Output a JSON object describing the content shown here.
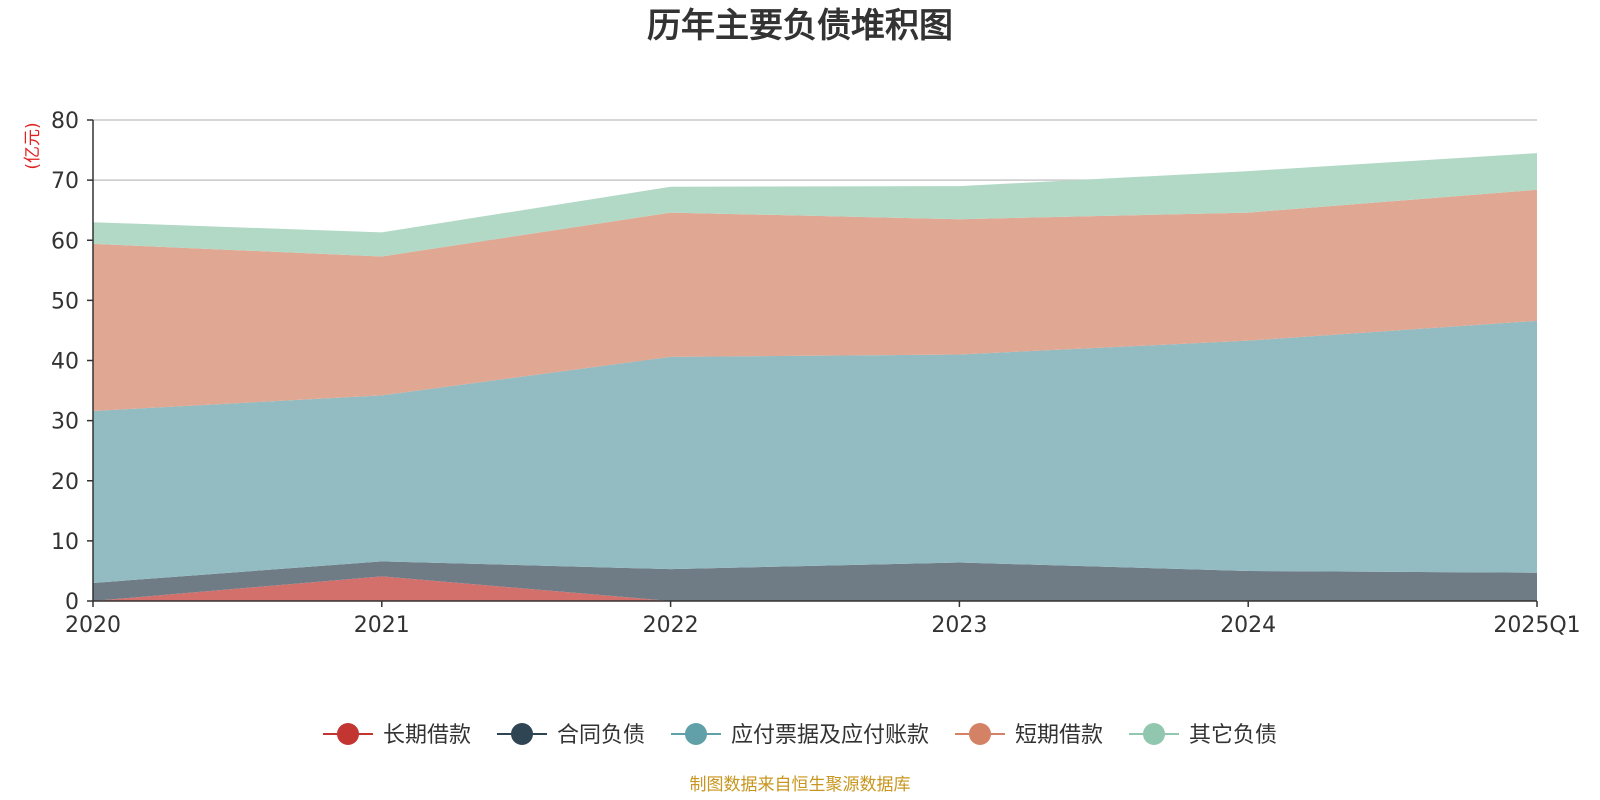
{
  "chart_data": {
    "type": "area",
    "stacked": true,
    "title": "历年主要负债堆积图",
    "unit_label": "(亿元)",
    "categories": [
      "2020",
      "2021",
      "2022",
      "2023",
      "2024",
      "2025Q1"
    ],
    "ylim": [
      0,
      80
    ],
    "yticks": [
      0,
      10,
      20,
      30,
      40,
      50,
      60,
      70,
      80
    ],
    "grid": true,
    "legend_position": "bottom",
    "series": [
      {
        "name": "长期借款",
        "color": "#c23531",
        "fill": "#d4706c",
        "values": [
          0,
          4.1,
          0,
          0,
          0,
          0
        ]
      },
      {
        "name": "合同负债",
        "color": "#2f4554",
        "fill": "#6f7c86",
        "values": [
          3.0,
          2.5,
          5.3,
          6.4,
          5.0,
          4.7
        ]
      },
      {
        "name": "应付票据及应付账款",
        "color": "#61a0a8",
        "fill": "#92bbc2",
        "values": [
          28.6,
          27.6,
          35.3,
          34.6,
          38.3,
          41.9
        ]
      },
      {
        "name": "短期借款",
        "color": "#d48265",
        "fill": "#e0a793",
        "values": [
          27.8,
          23.1,
          24.0,
          22.5,
          21.3,
          21.8
        ]
      },
      {
        "name": "其它负债",
        "color": "#91c7ae",
        "fill": "#b2d9c6",
        "values": [
          3.6,
          4.0,
          4.3,
          5.5,
          6.9,
          6.1
        ]
      }
    ],
    "source": "制图数据来自恒生聚源数据库"
  }
}
